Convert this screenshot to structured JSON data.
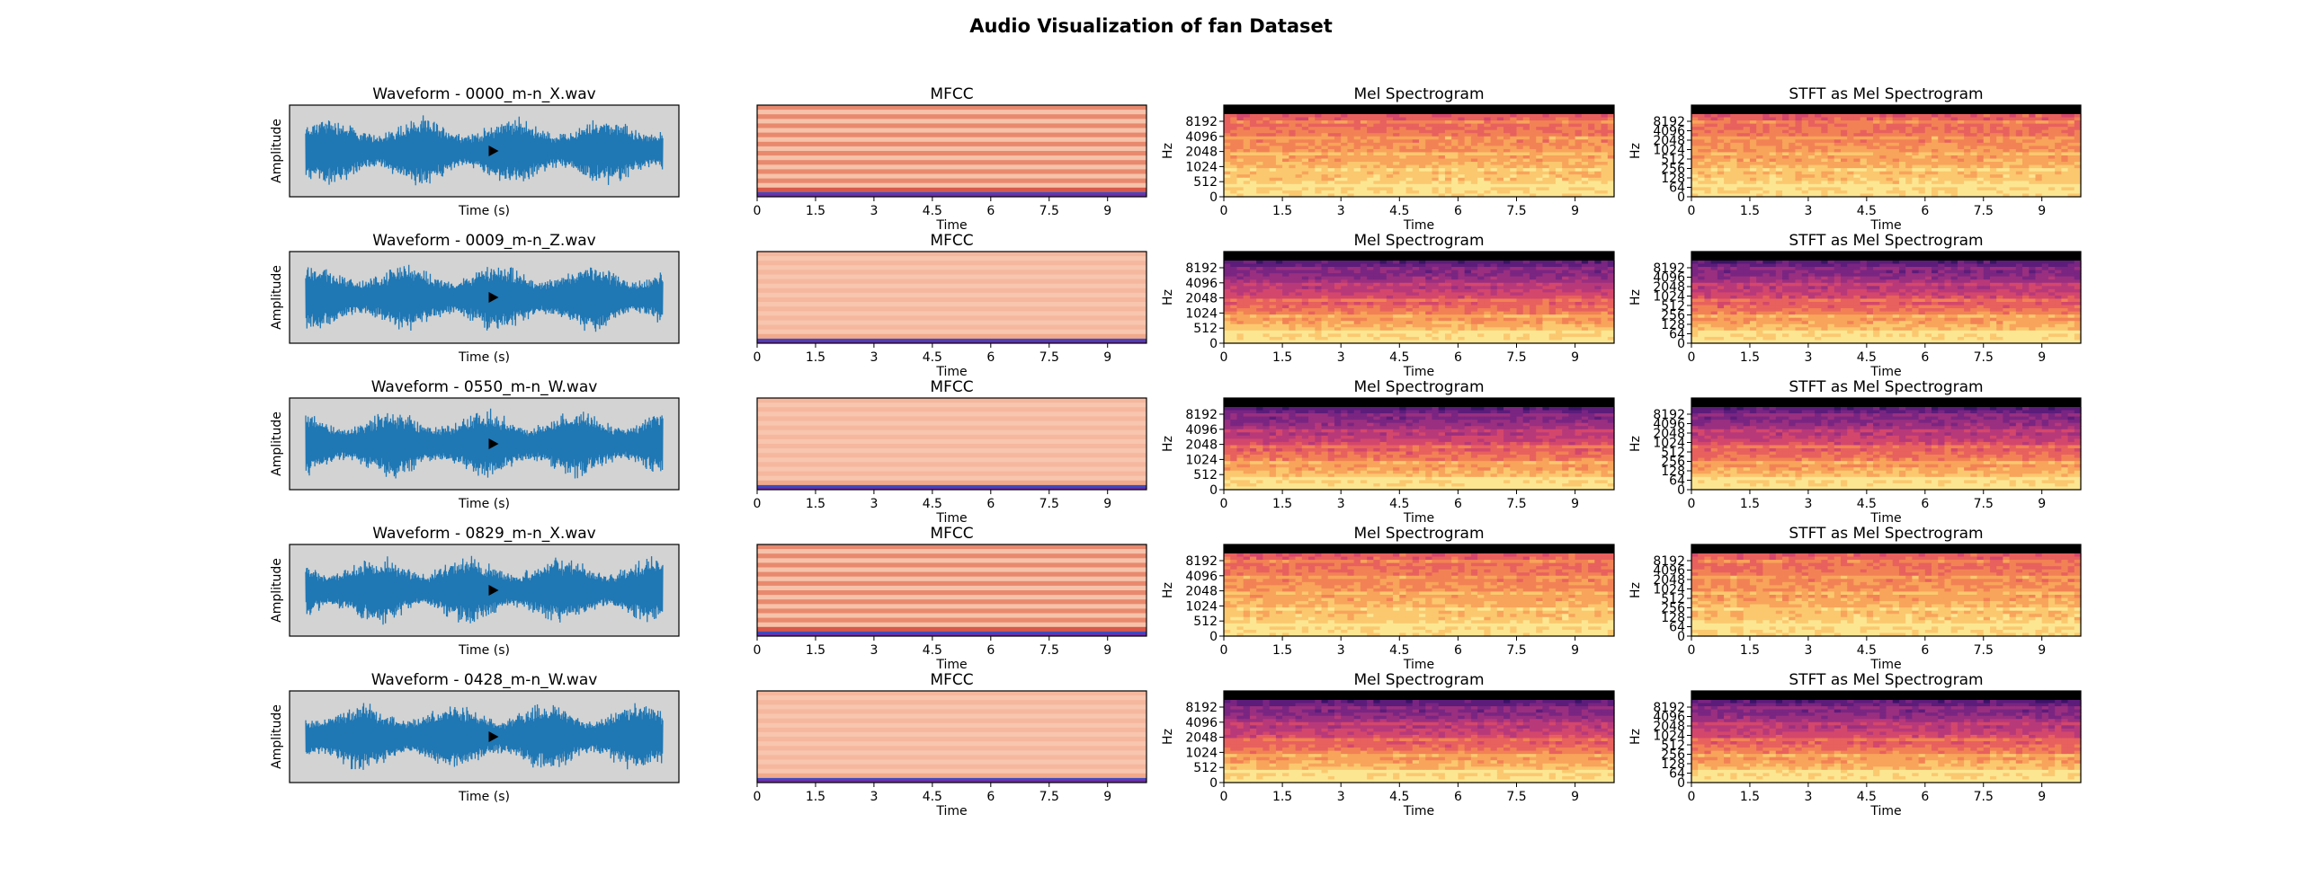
{
  "figure": {
    "title": "Audio Visualization of fan Dataset"
  },
  "chart_data": {
    "type": "mixed",
    "title": "Audio Visualization of fan Dataset",
    "rows": [
      {
        "file": "0000_m-n_X.wav",
        "waveform": {
          "title": "Waveform - 0000_m-n_X.wav",
          "xlabel": "Time (s)",
          "ylabel": "Amplitude",
          "play_icon": "play-icon",
          "color": "#1f77b4",
          "background": "#d3d3d3"
        },
        "mfcc": {
          "title": "MFCC",
          "xlabel": "Time",
          "xticks": [
            "0",
            "1.5",
            "3",
            "4.5",
            "6",
            "7.5",
            "9"
          ],
          "xlim": [
            0,
            10
          ],
          "colormap": "coolwarm"
        },
        "mel": {
          "title": "Mel Spectrogram",
          "xlabel": "Time",
          "ylabel": "Hz",
          "xticks": [
            "0",
            "1.5",
            "3",
            "4.5",
            "6",
            "7.5",
            "9"
          ],
          "yticks": [
            "0",
            "512",
            "1024",
            "2048",
            "4096",
            "8192"
          ],
          "colormap": "magma"
        },
        "stft": {
          "title": "STFT as Mel Spectrogram",
          "xlabel": "Time",
          "ylabel": "Hz",
          "xticks": [
            "0",
            "1.5",
            "3",
            "4.5",
            "6",
            "7.5",
            "9"
          ],
          "yticks": [
            "0",
            "64",
            "128",
            "256",
            "512",
            "1024",
            "2048",
            "4096",
            "8192"
          ],
          "colormap": "magma"
        }
      },
      {
        "file": "0009_m-n_Z.wav",
        "waveform": {
          "title": "Waveform - 0009_m-n_Z.wav",
          "xlabel": "Time (s)",
          "ylabel": "Amplitude",
          "play_icon": "play-icon",
          "color": "#1f77b4",
          "background": "#d3d3d3"
        },
        "mfcc": {
          "title": "MFCC",
          "xlabel": "Time",
          "xticks": [
            "0",
            "1.5",
            "3",
            "4.5",
            "6",
            "7.5",
            "9"
          ],
          "xlim": [
            0,
            10
          ],
          "colormap": "coolwarm"
        },
        "mel": {
          "title": "Mel Spectrogram",
          "xlabel": "Time",
          "ylabel": "Hz",
          "xticks": [
            "0",
            "1.5",
            "3",
            "4.5",
            "6",
            "7.5",
            "9"
          ],
          "yticks": [
            "0",
            "512",
            "1024",
            "2048",
            "4096",
            "8192"
          ],
          "colormap": "magma"
        },
        "stft": {
          "title": "STFT as Mel Spectrogram",
          "xlabel": "Time",
          "ylabel": "Hz",
          "xticks": [
            "0",
            "1.5",
            "3",
            "4.5",
            "6",
            "7.5",
            "9"
          ],
          "yticks": [
            "0",
            "64",
            "128",
            "256",
            "512",
            "1024",
            "2048",
            "4096",
            "8192"
          ],
          "colormap": "magma"
        }
      },
      {
        "file": "0550_m-n_W.wav",
        "waveform": {
          "title": "Waveform - 0550_m-n_W.wav",
          "xlabel": "Time (s)",
          "ylabel": "Amplitude",
          "play_icon": "play-icon",
          "color": "#1f77b4",
          "background": "#d3d3d3"
        },
        "mfcc": {
          "title": "MFCC",
          "xlabel": "Time",
          "xticks": [
            "0",
            "1.5",
            "3",
            "4.5",
            "6",
            "7.5",
            "9"
          ],
          "xlim": [
            0,
            10
          ],
          "colormap": "coolwarm"
        },
        "mel": {
          "title": "Mel Spectrogram",
          "xlabel": "Time",
          "ylabel": "Hz",
          "xticks": [
            "0",
            "1.5",
            "3",
            "4.5",
            "6",
            "7.5",
            "9"
          ],
          "yticks": [
            "0",
            "512",
            "1024",
            "2048",
            "4096",
            "8192"
          ],
          "colormap": "magma"
        },
        "stft": {
          "title": "STFT as Mel Spectrogram",
          "xlabel": "Time",
          "ylabel": "Hz",
          "xticks": [
            "0",
            "1.5",
            "3",
            "4.5",
            "6",
            "7.5",
            "9"
          ],
          "yticks": [
            "0",
            "64",
            "128",
            "256",
            "512",
            "1024",
            "2048",
            "4096",
            "8192"
          ],
          "colormap": "magma"
        }
      },
      {
        "file": "0829_m-n_X.wav",
        "waveform": {
          "title": "Waveform - 0829_m-n_X.wav",
          "xlabel": "Time (s)",
          "ylabel": "Amplitude",
          "play_icon": "play-icon",
          "color": "#1f77b4",
          "background": "#d3d3d3"
        },
        "mfcc": {
          "title": "MFCC",
          "xlabel": "Time",
          "xticks": [
            "0",
            "1.5",
            "3",
            "4.5",
            "6",
            "7.5",
            "9"
          ],
          "xlim": [
            0,
            10
          ],
          "colormap": "coolwarm"
        },
        "mel": {
          "title": "Mel Spectrogram",
          "xlabel": "Time",
          "ylabel": "Hz",
          "xticks": [
            "0",
            "1.5",
            "3",
            "4.5",
            "6",
            "7.5",
            "9"
          ],
          "yticks": [
            "0",
            "512",
            "1024",
            "2048",
            "4096",
            "8192"
          ],
          "colormap": "magma"
        },
        "stft": {
          "title": "STFT as Mel Spectrogram",
          "xlabel": "Time",
          "ylabel": "Hz",
          "xticks": [
            "0",
            "1.5",
            "3",
            "4.5",
            "6",
            "7.5",
            "9"
          ],
          "yticks": [
            "0",
            "64",
            "128",
            "256",
            "512",
            "1024",
            "2048",
            "4096",
            "8192"
          ],
          "colormap": "magma"
        }
      },
      {
        "file": "0428_m-n_W.wav",
        "waveform": {
          "title": "Waveform - 0428_m-n_W.wav",
          "xlabel": "Time (s)",
          "ylabel": "Amplitude",
          "play_icon": "play-icon",
          "color": "#1f77b4",
          "background": "#d3d3d3"
        },
        "mfcc": {
          "title": "MFCC",
          "xlabel": "Time",
          "xticks": [
            "0",
            "1.5",
            "3",
            "4.5",
            "6",
            "7.5",
            "9"
          ],
          "xlim": [
            0,
            10
          ],
          "colormap": "coolwarm"
        },
        "mel": {
          "title": "Mel Spectrogram",
          "xlabel": "Time",
          "ylabel": "Hz",
          "xticks": [
            "0",
            "1.5",
            "3",
            "4.5",
            "6",
            "7.5",
            "9"
          ],
          "yticks": [
            "0",
            "512",
            "1024",
            "2048",
            "4096",
            "8192"
          ],
          "colormap": "magma"
        },
        "stft": {
          "title": "STFT as Mel Spectrogram",
          "xlabel": "Time",
          "ylabel": "Hz",
          "xticks": [
            "0",
            "1.5",
            "3",
            "4.5",
            "6",
            "7.5",
            "9"
          ],
          "yticks": [
            "0",
            "64",
            "128",
            "256",
            "512",
            "1024",
            "2048",
            "4096",
            "8192"
          ],
          "colormap": "magma"
        }
      }
    ]
  }
}
